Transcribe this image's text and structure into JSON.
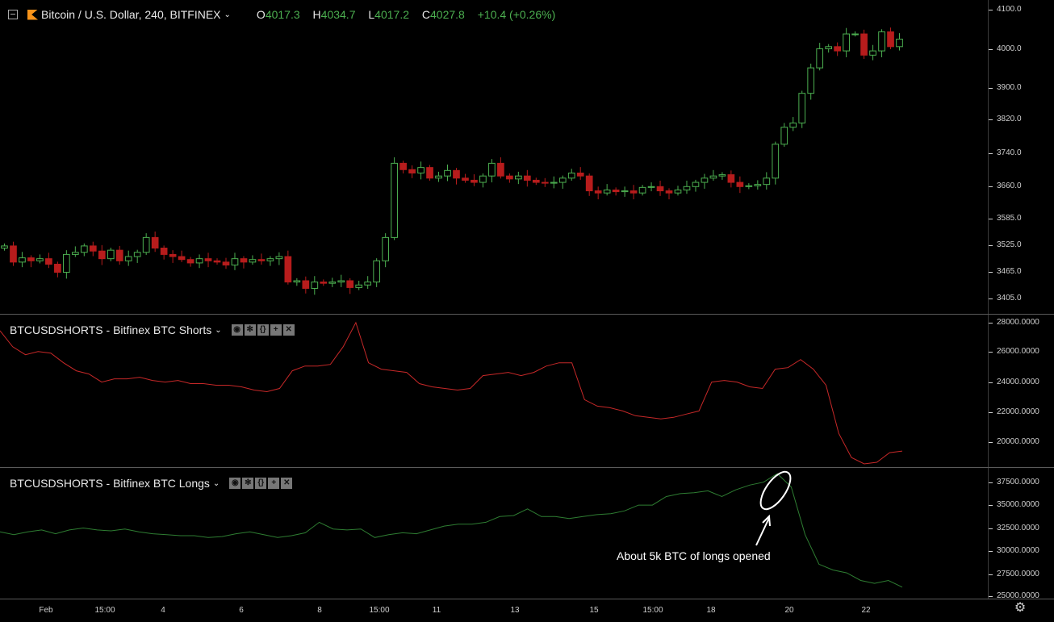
{
  "header": {
    "symbol_title": "Bitcoin / U.S. Dollar, 240, BITFINEX",
    "o_label": "O",
    "o_value": "4017.3",
    "h_label": "H",
    "h_value": "4034.7",
    "l_label": "L",
    "l_value": "4017.2",
    "c_label": "C",
    "c_value": "4027.8",
    "change": "+10.4 (+0.26%)"
  },
  "price_axis": [
    "4100.0",
    "4000.0",
    "3900.0",
    "3820.0",
    "3740.0",
    "3660.0",
    "3585.0",
    "3525.0",
    "3465.0",
    "3405.0"
  ],
  "shorts_panel": {
    "legend": "BTCUSDSHORTS - Bitfinex BTC Shorts",
    "axis": [
      "28000.0000",
      "26000.0000",
      "24000.0000",
      "22000.0000",
      "20000.0000"
    ],
    "line_color": "#c62828"
  },
  "longs_panel": {
    "legend": "BTCUSDSHORTS - Bitfinex BTC Longs",
    "axis": [
      "37500.0000",
      "35000.0000",
      "32500.0000",
      "30000.0000",
      "27500.0000",
      "25000.0000"
    ],
    "line_color": "#2e7d32"
  },
  "annotation": "About 5k BTC of longs opened",
  "time_axis": [
    "Feb",
    "15:00",
    "4",
    "6",
    "8",
    "15:00",
    "11",
    "13",
    "15",
    "15:00",
    "18",
    "20",
    "22"
  ],
  "colors": {
    "up": "#4caf50",
    "down": "#b71c1c",
    "background": "#000000"
  },
  "chart_data": [
    {
      "type": "candlestick",
      "title": "Bitcoin / U.S. Dollar, 240, BITFINEX",
      "ylim": [
        3380,
        4120
      ],
      "series": [
        {
          "name": "BTCUSD",
          "close": [
            3540,
            3502,
            3512,
            3505,
            3510,
            3497,
            3478,
            3520,
            3525,
            3540,
            3528,
            3510,
            3530,
            3505,
            3515,
            3525,
            3560,
            3535,
            3520,
            3515,
            3508,
            3500,
            3510,
            3505,
            3502,
            3495,
            3510,
            3502,
            3508,
            3505,
            3510,
            3515,
            3455,
            3458,
            3440,
            3455,
            3452,
            3455,
            3458,
            3442,
            3448,
            3455,
            3505,
            3560,
            3735,
            3720,
            3712,
            3725,
            3700,
            3705,
            3718,
            3700,
            3695,
            3690,
            3705,
            3735,
            3705,
            3698,
            3705,
            3695,
            3690,
            3688,
            3690,
            3700,
            3712,
            3705,
            3670,
            3665,
            3672,
            3668,
            3670,
            3665,
            3678,
            3680,
            3670,
            3665,
            3672,
            3680,
            3690,
            3700,
            3705,
            3708,
            3690,
            3680,
            3682,
            3685,
            3700,
            3780,
            3820,
            3830,
            3900,
            3960,
            4005,
            4010,
            4000,
            4040,
            4040,
            3990,
            4000,
            4045,
            4010,
            4027.8
          ]
        }
      ],
      "x_ticks": [
        "Feb",
        "15:00",
        "4",
        "6",
        "8",
        "15:00",
        "11",
        "13",
        "15",
        "15:00",
        "18",
        "20",
        "22"
      ]
    },
    {
      "type": "line",
      "title": "BTCUSDSHORTS - Bitfinex BTC Shorts",
      "ylim": [
        19000,
        28500
      ],
      "series": [
        {
          "name": "BTCUSDSHORTS - Bitfinex BTC Shorts",
          "values": [
            27500,
            26500,
            26000,
            26200,
            26100,
            25500,
            25000,
            24800,
            24300,
            24500,
            24500,
            24600,
            24400,
            24300,
            24400,
            24200,
            24200,
            24100,
            24100,
            24000,
            23800,
            23700,
            23900,
            25000,
            25300,
            25300,
            25400,
            26500,
            28000,
            25500,
            25100,
            25000,
            24900,
            24200,
            24000,
            23900,
            23800,
            23900,
            24700,
            24800,
            24900,
            24700,
            24900,
            25300,
            25500,
            25500,
            23200,
            22800,
            22700,
            22500,
            22200,
            22100,
            22000,
            22100,
            22300,
            22500,
            24300,
            24400,
            24300,
            24000,
            23900,
            25100,
            25200,
            25700,
            25100,
            24100,
            21100,
            19600,
            19200,
            19300,
            19900,
            20000
          ]
        }
      ]
    },
    {
      "type": "line",
      "title": "BTCUSDSHORTS - Bitfinex BTC Longs",
      "ylim": [
        24800,
        38500
      ],
      "series": [
        {
          "name": "BTCUSDSHORTS - Bitfinex BTC Longs",
          "values": [
            31800,
            31500,
            31800,
            32000,
            31600,
            32000,
            32200,
            32000,
            31900,
            32100,
            31800,
            31600,
            31500,
            31400,
            31400,
            31200,
            31300,
            31600,
            31800,
            31500,
            31200,
            31400,
            31700,
            32800,
            32100,
            32000,
            32100,
            31200,
            31500,
            31700,
            31600,
            32000,
            32400,
            32600,
            32600,
            32800,
            33400,
            33500,
            34200,
            33400,
            33400,
            33200,
            33400,
            33600,
            33700,
            34000,
            34600,
            34600,
            35500,
            35800,
            35900,
            36100,
            35500,
            36200,
            36700,
            37000,
            37900,
            36500,
            31500,
            28400,
            27800,
            27500,
            26700,
            26400,
            26700,
            26000
          ]
        }
      ]
    }
  ]
}
